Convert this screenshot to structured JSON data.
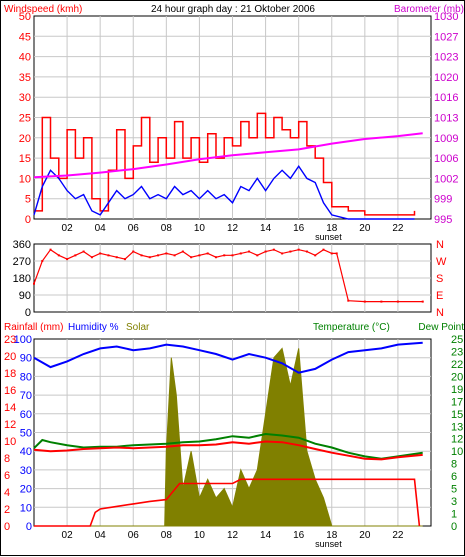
{
  "chart_data": [
    {
      "type": "line",
      "title": "24 hour graph day : 21 Oktober 2006",
      "left_label": "Windspeed (kmh)",
      "right_label": "Barometer (mb)",
      "ylim": [
        0,
        50
      ],
      "y2lim": [
        995,
        1030
      ],
      "yticks": [
        0,
        5,
        10,
        15,
        20,
        25,
        30,
        35,
        40,
        45,
        50
      ],
      "y2ticks": [
        995,
        999,
        1002,
        1006,
        1009,
        1013,
        1016,
        1020,
        1023,
        1027,
        1030
      ],
      "xticks": [
        "02",
        "04",
        "06",
        "08",
        "10",
        "12",
        "14",
        "16",
        "18",
        "20",
        "22"
      ],
      "x_annotation": "sunset",
      "grid": true,
      "colors": {
        "gust": "#ff0000",
        "wind": "#0000ff",
        "barometer": "#ff00ff"
      },
      "series": [
        {
          "name": "Barometer",
          "x": [
            0,
            2,
            4,
            6,
            8,
            10,
            12,
            14,
            16,
            18,
            20,
            22,
            23.5
          ],
          "values": [
            1002.2,
            1002.5,
            1003.0,
            1003.6,
            1004.4,
            1005.3,
            1006.0,
            1006.5,
            1007.0,
            1008.0,
            1008.8,
            1009.3,
            1009.8
          ]
        },
        {
          "name": "Wind gust",
          "x": [
            0,
            0.5,
            1,
            1.5,
            2,
            2.5,
            3,
            3.5,
            4,
            4.5,
            5,
            5.5,
            6,
            6.5,
            7,
            7.5,
            8,
            8.5,
            9,
            9.5,
            10,
            10.5,
            11,
            11.5,
            12,
            12.5,
            13,
            13.5,
            14,
            14.5,
            15,
            15.5,
            16,
            16.5,
            17,
            17.5,
            18,
            19,
            20,
            21,
            22,
            23
          ],
          "values": [
            2,
            25,
            15,
            10,
            22,
            15,
            20,
            5,
            2,
            12,
            22,
            10,
            18,
            25,
            14,
            20,
            15,
            24,
            15,
            20,
            14,
            21,
            15,
            20,
            18,
            24,
            20,
            26,
            20,
            25,
            22,
            20,
            24,
            18,
            15,
            9,
            3,
            2,
            1,
            1,
            1,
            2
          ]
        },
        {
          "name": "Wind",
          "x": [
            0,
            0.5,
            1,
            1.5,
            2,
            2.5,
            3,
            3.5,
            4,
            4.5,
            5,
            5.5,
            6,
            6.5,
            7,
            7.5,
            8,
            8.5,
            9,
            9.5,
            10,
            10.5,
            11,
            11.5,
            12,
            12.5,
            13,
            13.5,
            14,
            14.5,
            15,
            15.5,
            16,
            16.5,
            17,
            17.5,
            18,
            19,
            20,
            21,
            22,
            23
          ],
          "values": [
            1,
            8,
            12,
            10,
            7,
            5,
            6,
            2,
            1,
            4,
            7,
            5,
            6,
            8,
            5,
            6,
            5,
            8,
            6,
            7,
            5,
            7,
            5,
            6,
            4,
            8,
            7,
            10,
            7,
            10,
            12,
            10,
            13,
            10,
            9,
            4,
            1,
            0,
            0,
            0,
            0,
            0
          ]
        }
      ]
    },
    {
      "type": "scatter",
      "ylim": [
        0,
        360
      ],
      "yticks": [
        0,
        90,
        180,
        270,
        360
      ],
      "compass": [
        "N",
        "W",
        "S",
        "E",
        "N"
      ],
      "grid": true,
      "colors": {
        "direction": "#ff0000"
      },
      "series": [
        {
          "name": "Wind direction",
          "x": [
            0,
            0.5,
            1,
            1.5,
            2,
            2.5,
            3,
            3.5,
            4,
            4.5,
            5,
            5.5,
            6,
            6.5,
            7,
            7.5,
            8,
            8.5,
            9,
            9.5,
            10,
            10.5,
            11,
            11.5,
            12,
            12.5,
            13,
            13.5,
            14,
            14.5,
            15,
            15.5,
            16,
            16.5,
            17,
            17.5,
            18,
            18.3,
            19,
            20,
            21,
            22,
            23.5
          ],
          "values": [
            150,
            270,
            330,
            300,
            280,
            300,
            320,
            290,
            310,
            300,
            290,
            280,
            320,
            300,
            290,
            300,
            310,
            300,
            320,
            290,
            300,
            310,
            290,
            300,
            300,
            310,
            320,
            300,
            320,
            330,
            310,
            320,
            330,
            320,
            300,
            330,
            310,
            310,
            60,
            55,
            55,
            55,
            55
          ]
        }
      ]
    },
    {
      "type": "line",
      "left_labels": {
        "rainfall": "Rainfall (mm)",
        "humidity": "Humidity %",
        "solar": "Solar"
      },
      "right_labels": {
        "temperature": "Temperature (°C)",
        "dewpoint": "Dew Point"
      },
      "left_rain_ticks": [
        0,
        2,
        4,
        6,
        8,
        10,
        12,
        14,
        16,
        18,
        20,
        23
      ],
      "left_humidity_ticks": [
        0,
        10,
        20,
        30,
        40,
        50,
        60,
        70,
        80,
        90,
        100
      ],
      "right_ticks": [
        0,
        1,
        3,
        5,
        6,
        8,
        10,
        12,
        13,
        15,
        17,
        19,
        20,
        22,
        23,
        25
      ],
      "ylim": [
        0,
        100
      ],
      "y2lim": [
        0,
        25
      ],
      "xticks": [
        "02",
        "04",
        "06",
        "08",
        "10",
        "12",
        "14",
        "16",
        "18",
        "20",
        "22"
      ],
      "x_annotation": "sunset",
      "grid": true,
      "colors": {
        "humidity": "#0000ff",
        "temperature": "#ff0000",
        "dewpoint": "#008000",
        "solar": "#808000",
        "rainfall": "#ff0000"
      },
      "series": [
        {
          "name": "Humidity",
          "x": [
            0,
            1,
            2,
            3,
            4,
            5,
            6,
            7,
            8,
            9,
            10,
            11,
            12,
            13,
            14,
            15,
            16,
            17,
            18,
            19,
            20,
            21,
            22,
            23.5
          ],
          "values": [
            90,
            85,
            88,
            92,
            95,
            96,
            94,
            95,
            97,
            96,
            94,
            92,
            89,
            92,
            90,
            87,
            82,
            84,
            89,
            93,
            94,
            95,
            97,
            98
          ]
        },
        {
          "name": "Temperature",
          "x": [
            0,
            1,
            2,
            3,
            4,
            5,
            6,
            7,
            8,
            9,
            10,
            11,
            12,
            13,
            14,
            15,
            16,
            17,
            18,
            19,
            20,
            21,
            22,
            23.5
          ],
          "values": [
            10.2,
            10.0,
            10.1,
            10.3,
            10.4,
            10.5,
            10.4,
            10.5,
            10.6,
            10.8,
            10.8,
            10.9,
            11.2,
            11.0,
            11.3,
            11.2,
            10.8,
            10.3,
            9.8,
            9.4,
            9.0,
            8.9,
            9.2,
            9.5
          ]
        },
        {
          "name": "Dew Point",
          "x": [
            0,
            0.5,
            1,
            2,
            3,
            4,
            5,
            6,
            7,
            8,
            9,
            10,
            11,
            12,
            13,
            14,
            15,
            16,
            17,
            18,
            19,
            20,
            21,
            22,
            23.5
          ],
          "values": [
            10.4,
            11.5,
            11.2,
            10.8,
            10.5,
            10.6,
            10.6,
            10.8,
            10.9,
            11.0,
            11.2,
            11.3,
            11.6,
            12.0,
            11.8,
            12.3,
            12.1,
            11.8,
            11.0,
            10.5,
            9.8,
            9.3,
            9.0,
            9.3,
            9.8
          ]
        },
        {
          "name": "Solar",
          "x": [
            0,
            7.9,
            8.0,
            8.3,
            8.6,
            9.0,
            9.5,
            10.0,
            10.5,
            11.0,
            11.5,
            12.0,
            12.5,
            13.0,
            13.5,
            14.0,
            14.5,
            15.0,
            15.5,
            16.0,
            16.5,
            17.0,
            17.5,
            18.0,
            23.5
          ],
          "values": [
            0,
            0,
            40,
            90,
            70,
            20,
            40,
            15,
            25,
            15,
            20,
            10,
            30,
            20,
            30,
            60,
            90,
            95,
            75,
            95,
            40,
            25,
            15,
            0,
            0
          ]
        },
        {
          "name": "Rainfall",
          "x": [
            0,
            3.4,
            3.7,
            4.0,
            5.0,
            6.0,
            7.0,
            8.0,
            8.8,
            12.0,
            12.5,
            23.0,
            23.3
          ],
          "values": [
            0,
            0,
            1.6,
            2.0,
            2.3,
            2.6,
            2.9,
            3.1,
            5.0,
            5.0,
            5.5,
            5.5,
            0
          ]
        }
      ]
    }
  ]
}
